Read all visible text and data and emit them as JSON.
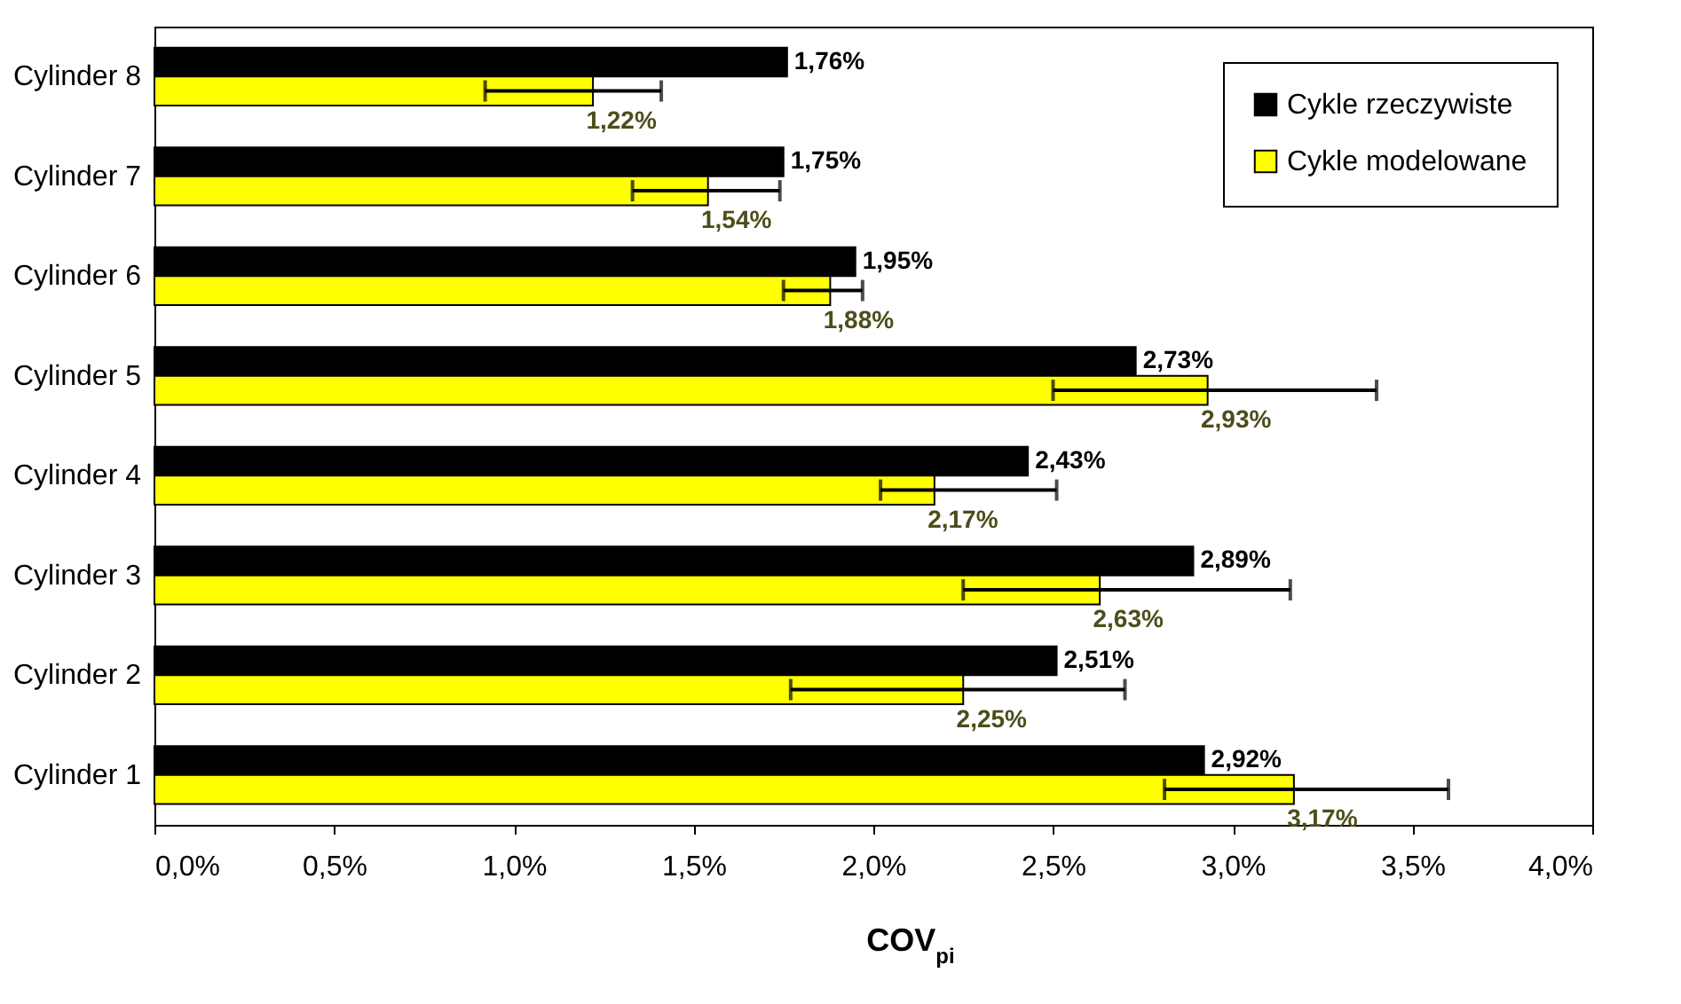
{
  "chart_data": {
    "type": "bar",
    "orientation": "horizontal",
    "xlabel": "COV$_{pi}$",
    "categories": [
      "Cylinder 8",
      "Cylinder 7",
      "Cylinder 6",
      "Cylinder 5",
      "Cylinder 4",
      "Cylinder 3",
      "Cylinder 2",
      "Cylinder 1"
    ],
    "series": [
      {
        "name": "Cykle rzeczywiste",
        "color": "#000000",
        "values": [
          1.76,
          1.75,
          1.95,
          2.73,
          2.43,
          2.89,
          2.51,
          2.92
        ],
        "value_labels": [
          "1,76%",
          "1,75%",
          "1,95%",
          "2,73%",
          "2,43%",
          "2,89%",
          "2,51%",
          "2,92%"
        ]
      },
      {
        "name": "Cykle modelowane",
        "color": "#ffff00",
        "values": [
          1.22,
          1.54,
          1.88,
          2.93,
          2.17,
          2.63,
          2.25,
          3.17
        ],
        "value_labels": [
          "1,22%",
          "1,54%",
          "1,88%",
          "2,93%",
          "2,17%",
          "2,63%",
          "2,25%",
          "3,17%"
        ],
        "errors": [
          [
            0.92,
            1.41
          ],
          [
            1.33,
            1.74
          ],
          [
            1.75,
            1.97
          ],
          [
            2.5,
            3.4
          ],
          [
            2.02,
            2.51
          ],
          [
            2.25,
            3.16
          ],
          [
            1.77,
            2.7
          ],
          [
            2.81,
            3.6
          ]
        ]
      }
    ],
    "xlim": [
      0,
      4
    ],
    "xticks": [
      {
        "value": 0,
        "label": "0,0%"
      },
      {
        "value": 0.5,
        "label": "0,5%"
      },
      {
        "value": 1,
        "label": "1,0%"
      },
      {
        "value": 1.5,
        "label": "1,5%"
      },
      {
        "value": 2,
        "label": "2,0%"
      },
      {
        "value": 2.5,
        "label": "2,5%"
      },
      {
        "value": 3,
        "label": "3,0%"
      },
      {
        "value": 3.5,
        "label": "3,5%"
      },
      {
        "value": 4,
        "label": "4,0%"
      }
    ],
    "grid": false,
    "legend": "top right"
  }
}
